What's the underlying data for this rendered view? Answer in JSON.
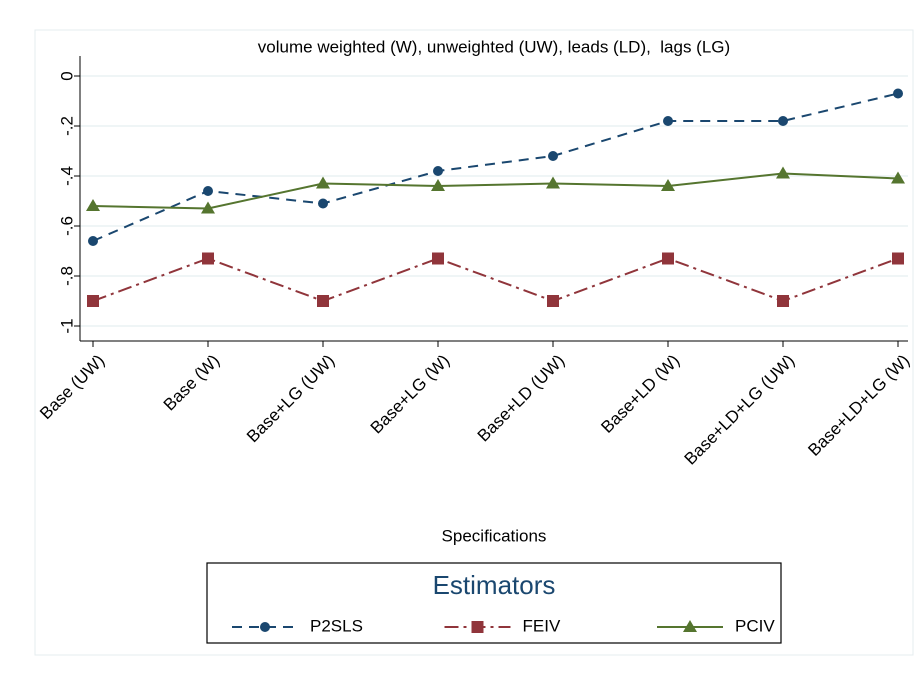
{
  "chart_data": {
    "type": "line",
    "title": "volume weighted (W), unweighted (UW), leads (LD),  lags (LG)",
    "x_label": "Specifications",
    "categories": [
      "Base (UW)",
      "Base (W)",
      "Base+LG (UW)",
      "Base+LG (W)",
      "Base+LD (UW)",
      "Base+LD (W)",
      "Base+LD+LG (UW)",
      "Base+LD+LG (W)"
    ],
    "series": [
      {
        "name": "P2SLS",
        "color": "#1a476f",
        "dash": "10 7",
        "marker": "circle",
        "values": [
          -0.66,
          -0.46,
          -0.51,
          -0.38,
          -0.32,
          -0.18,
          -0.18,
          -0.07
        ]
      },
      {
        "name": "FEIV",
        "color": "#90353b",
        "dash": "14 5 3 5",
        "marker": "square",
        "values": [
          -0.9,
          -0.73,
          -0.9,
          -0.73,
          -0.9,
          -0.73,
          -0.9,
          -0.73
        ]
      },
      {
        "name": "PCIV",
        "color": "#55752f",
        "dash": "none",
        "marker": "triangle",
        "values": [
          -0.52,
          -0.53,
          -0.43,
          -0.44,
          -0.43,
          -0.44,
          -0.39,
          -0.41
        ]
      }
    ],
    "ylim": [
      -1.06,
      0.08
    ],
    "yticks": [
      0,
      {
        "value": -0.2,
        "label": "-.2"
      },
      {
        "value": -0.4,
        "label": "-.4"
      },
      {
        "value": -0.6,
        "label": "-.6"
      },
      {
        "value": -0.8,
        "label": "-.8"
      },
      -1
    ],
    "grid": true,
    "legend": {
      "title": "Estimators",
      "position": "bottom"
    }
  }
}
